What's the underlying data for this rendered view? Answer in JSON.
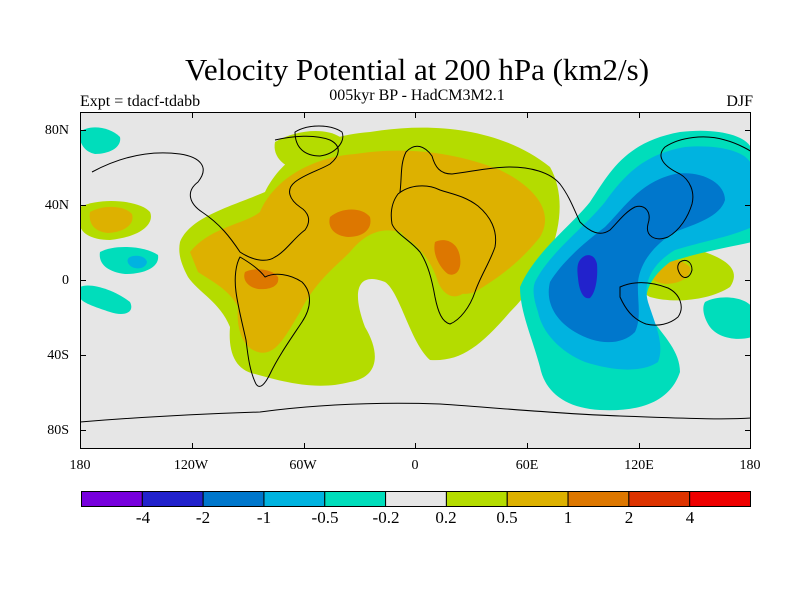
{
  "header": {
    "title": "Velocity Potential at 200 hPa (km2/s)",
    "subtitle": "005kyr BP - HadCM3M2.1",
    "left_label": "Expt = tdacf-tdabb",
    "right_label": "DJF"
  },
  "axes": {
    "lat_ticks": [
      "80N",
      "40N",
      "0",
      "40S",
      "80S"
    ],
    "lon_ticks": [
      "180",
      "120W",
      "60W",
      "0",
      "60E",
      "120E",
      "180"
    ]
  },
  "colorbar": {
    "labels": [
      "-4",
      "-2",
      "-1",
      "-0.5",
      "-0.2",
      "0.2",
      "0.5",
      "1",
      "2",
      "4"
    ],
    "colors": [
      "#7700dd",
      "#2222cc",
      "#0077cc",
      "#00b3e0",
      "#00ddbb",
      "#e6e6e6",
      "#b4dc00",
      "#ddb100",
      "#dd7700",
      "#dd3300",
      "#ee0000"
    ]
  },
  "map": {
    "background": "#e6e6e6",
    "coastline_color": "#000000",
    "type": "filled-contour"
  }
}
